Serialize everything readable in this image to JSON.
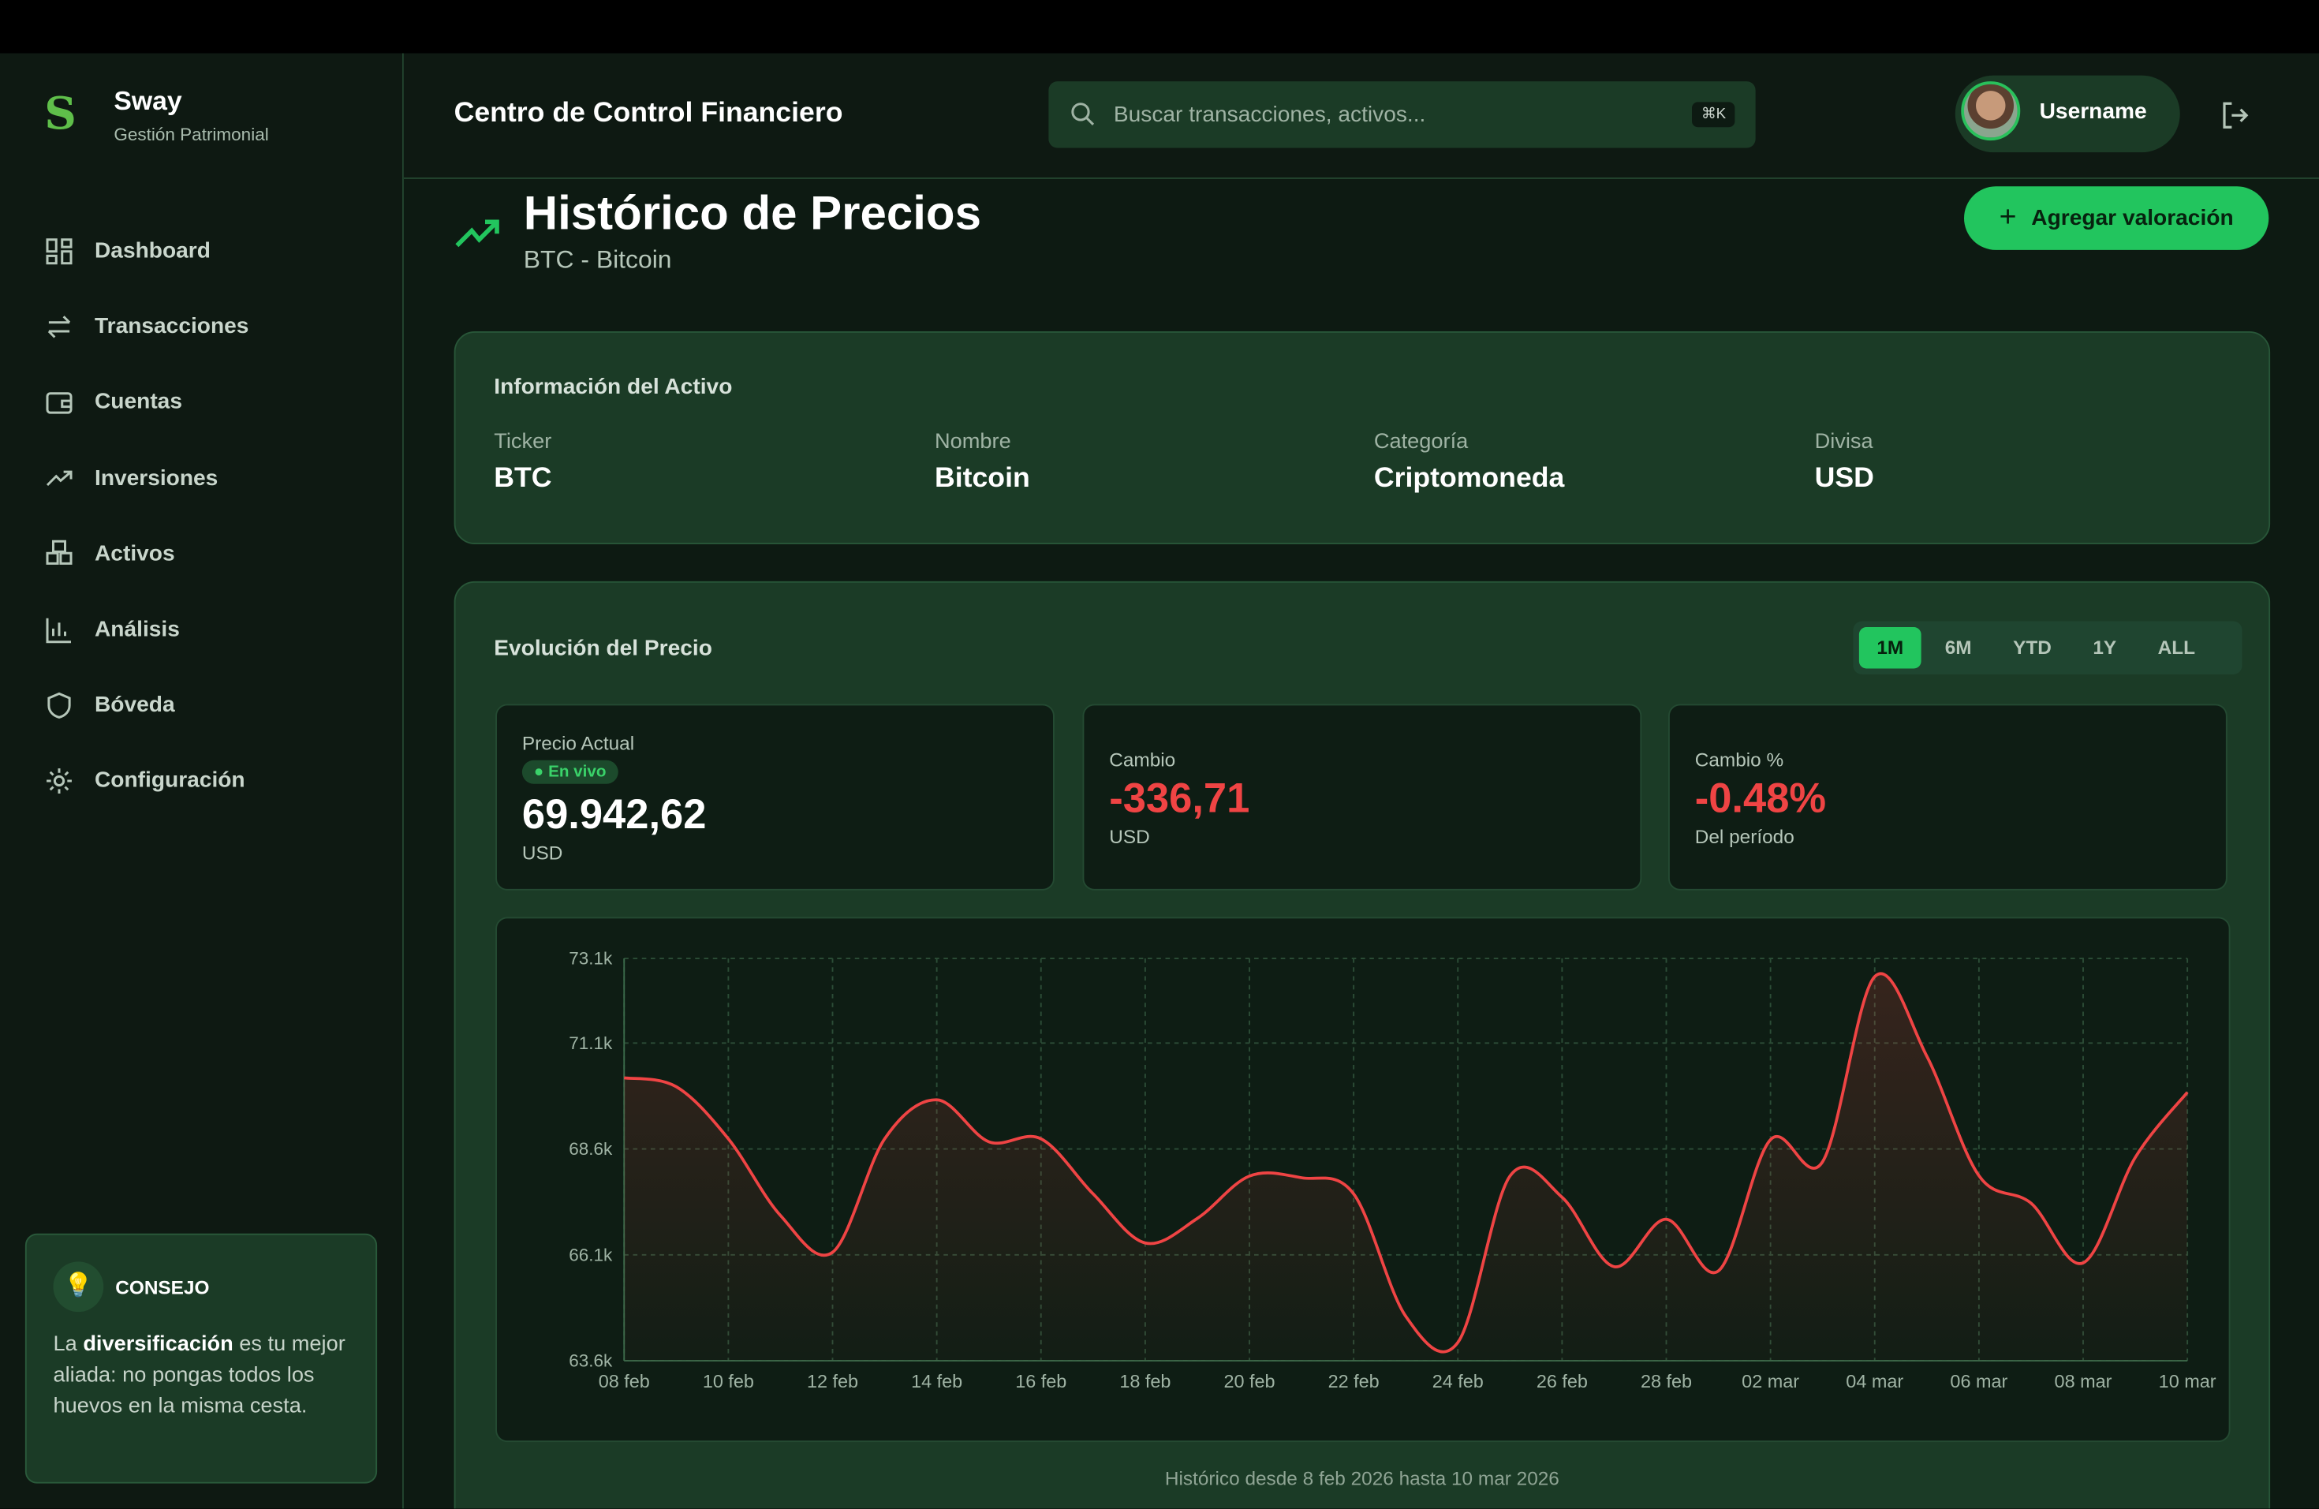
{
  "sidebar": {
    "brand": "Sway",
    "subtitle": "Gestión Patrimonial",
    "items": [
      {
        "label": "Dashboard",
        "icon": "grid-icon"
      },
      {
        "label": "Transacciones",
        "icon": "swap-icon"
      },
      {
        "label": "Cuentas",
        "icon": "wallet-icon"
      },
      {
        "label": "Inversiones",
        "icon": "trending-up-icon"
      },
      {
        "label": "Activos",
        "icon": "boxes-icon"
      },
      {
        "label": "Análisis",
        "icon": "bar-chart-icon"
      },
      {
        "label": "Bóveda",
        "icon": "shield-icon"
      },
      {
        "label": "Configuración",
        "icon": "gear-icon"
      }
    ],
    "tip": {
      "title": "CONSEJO",
      "pre": "La ",
      "bold": "diversificación",
      "post": " es tu mejor aliada: no pongas todos los huevos en la misma cesta."
    }
  },
  "header": {
    "title": "Centro de Control Financiero",
    "search_placeholder": "Buscar transacciones, activos...",
    "shortcut": "⌘K",
    "username": "Username"
  },
  "page": {
    "title": "Histórico de Precios",
    "subtitle": "BTC - Bitcoin",
    "add_button": "Agregar valoración"
  },
  "asset_info": {
    "title": "Información del Activo",
    "fields": [
      {
        "label": "Ticker",
        "value": "BTC"
      },
      {
        "label": "Nombre",
        "value": "Bitcoin"
      },
      {
        "label": "Categoría",
        "value": "Criptomoneda"
      },
      {
        "label": "Divisa",
        "value": "USD"
      }
    ]
  },
  "evolution": {
    "title": "Evolución del Precio",
    "ranges": [
      "1M",
      "6M",
      "YTD",
      "1Y",
      "ALL"
    ],
    "active_range": "1M",
    "current": {
      "label": "Precio Actual",
      "live": "En vivo",
      "value": "69.942,62",
      "unit": "USD"
    },
    "change": {
      "label": "Cambio",
      "value": "-336,71",
      "unit": "USD"
    },
    "change_pct": {
      "label": "Cambio %",
      "value": "-0.48%",
      "unit": "Del período"
    },
    "footer": "Histórico desde 8 feb 2026 hasta 10 mar 2026"
  },
  "colors": {
    "accent": "#22c55e",
    "negative": "#ef4444"
  },
  "chart_data": {
    "type": "area",
    "ylim": [
      63.6,
      73.1
    ],
    "yunit": "k USD",
    "yticks": [
      "73.1k",
      "71.1k",
      "68.6k",
      "66.1k",
      "63.6k"
    ],
    "ytick_values": [
      73.1,
      71.1,
      68.6,
      66.1,
      63.6
    ],
    "xticks": [
      "08 feb",
      "10 feb",
      "12 feb",
      "14 feb",
      "16 feb",
      "18 feb",
      "20 feb",
      "22 feb",
      "24 feb",
      "26 feb",
      "28 feb",
      "02 mar",
      "04 mar",
      "06 mar",
      "08 mar",
      "10 mar"
    ],
    "x": [
      "08 feb",
      "09 feb",
      "10 feb",
      "11 feb",
      "12 feb",
      "13 feb",
      "14 feb",
      "15 feb",
      "16 feb",
      "17 feb",
      "18 feb",
      "19 feb",
      "20 feb",
      "21 feb",
      "22 feb",
      "23 feb",
      "24 feb",
      "25 feb",
      "26 feb",
      "27 feb",
      "28 feb",
      "01 mar",
      "02 mar",
      "03 mar",
      "04 mar",
      "05 mar",
      "06 mar",
      "07 mar",
      "08 mar",
      "09 mar",
      "10 mar"
    ],
    "values": [
      70.28,
      70.07,
      68.84,
      67.03,
      66.16,
      68.84,
      69.76,
      68.77,
      68.84,
      67.54,
      66.38,
      66.96,
      67.96,
      67.92,
      67.54,
      64.65,
      64.03,
      67.96,
      67.46,
      65.82,
      66.94,
      65.72,
      68.82,
      68.3,
      72.67,
      70.79,
      67.97,
      67.32,
      65.91,
      68.4,
      69.94
    ],
    "grid": true
  }
}
